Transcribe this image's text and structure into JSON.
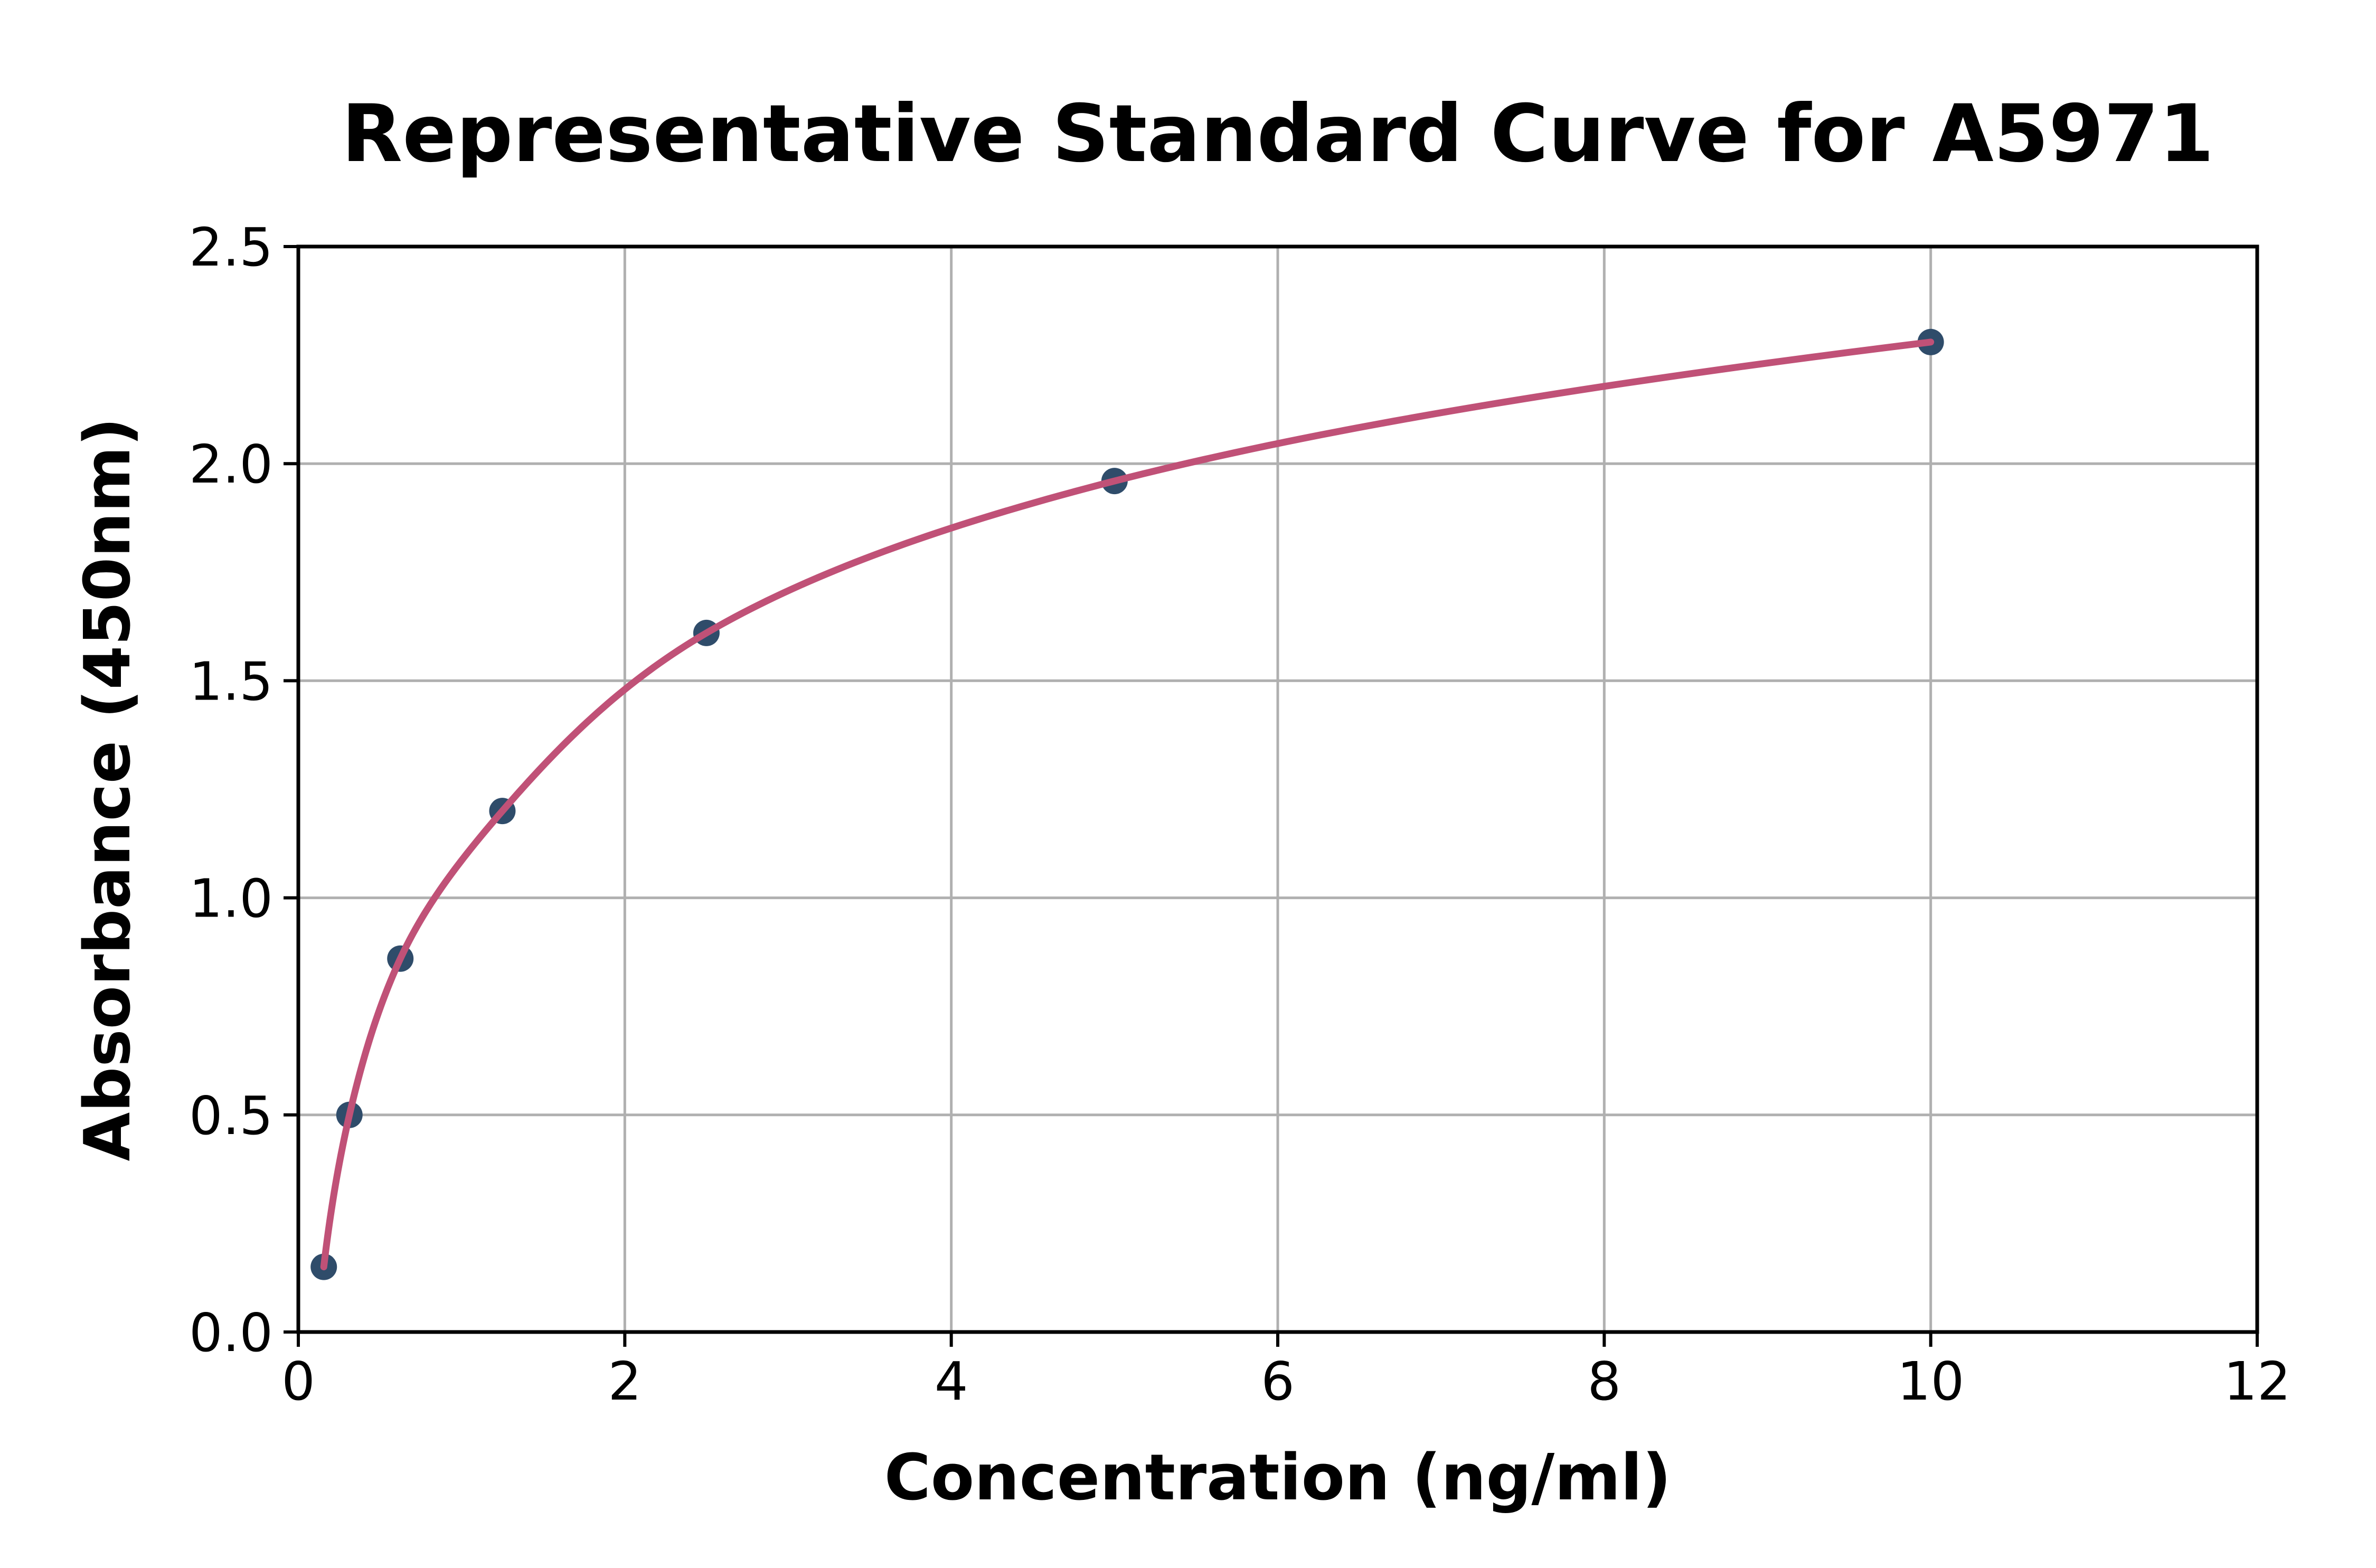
{
  "figure": {
    "background": "#ffffff"
  },
  "chart_data": {
    "type": "line",
    "title": "Representative Standard Curve for A5971",
    "xlabel": "Concentration (ng/ml)",
    "ylabel": "Absorbance (450nm)",
    "x": [
      0.156,
      0.313,
      0.625,
      1.25,
      2.5,
      5,
      10
    ],
    "y": [
      0.15,
      0.5,
      0.86,
      1.2,
      1.61,
      1.96,
      2.28
    ],
    "xlim": [
      0,
      12
    ],
    "ylim": [
      0,
      2.5
    ],
    "xticks": {
      "values": [
        0,
        2,
        4,
        6,
        8,
        10,
        12
      ],
      "labels": [
        "0",
        "2",
        "4",
        "6",
        "8",
        "10",
        "12"
      ]
    },
    "yticks": {
      "values": [
        0,
        0.5,
        1,
        1.5,
        2,
        2.5
      ],
      "labels": [
        "0.0",
        "0.5",
        "1.0",
        "1.5",
        "2.0",
        "2.5"
      ]
    },
    "grid": true,
    "legend_position": "none",
    "style": {
      "curve_color": "#C05177",
      "marker_color": "#2F4C6A",
      "grid_color": "#B0B0B0",
      "spine_color": "#000000",
      "text_color": "#000000"
    }
  }
}
